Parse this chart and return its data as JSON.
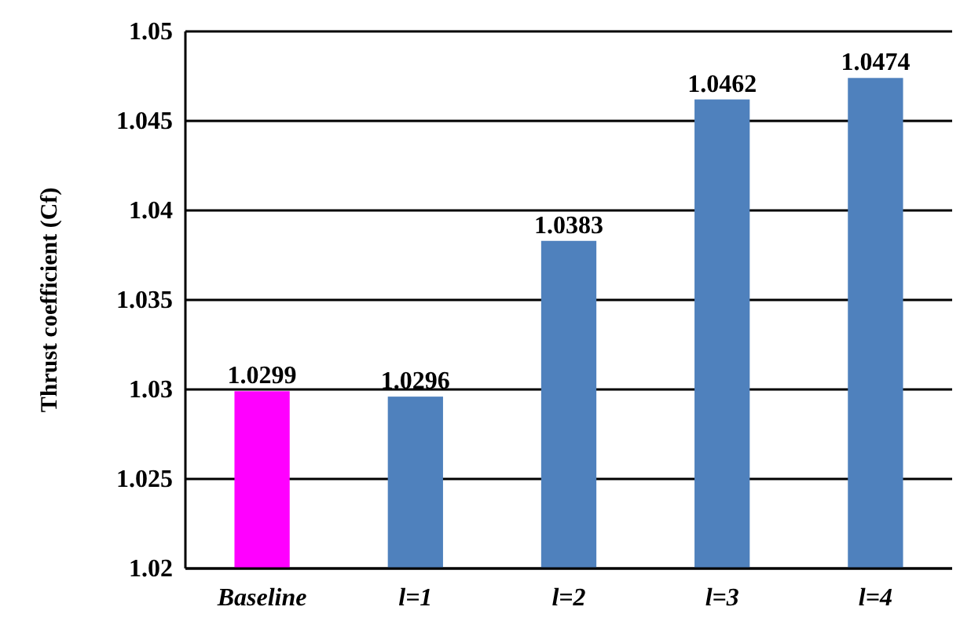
{
  "chart_data": {
    "type": "bar",
    "ylabel": "Thrust coefficient (Cf)",
    "categories": [
      "Baseline",
      "l=1",
      "l=2",
      "l=3",
      "l=4"
    ],
    "values": [
      1.0299,
      1.0296,
      1.0383,
      1.0462,
      1.0474
    ],
    "colors": [
      "#ff00ff",
      "#4f81bd",
      "#4f81bd",
      "#4f81bd",
      "#4f81bd"
    ],
    "ylim": [
      1.02,
      1.05
    ],
    "yticks": [
      1.02,
      1.025,
      1.03,
      1.035,
      1.04,
      1.045,
      1.05
    ],
    "grid": "y",
    "data_labels": true
  }
}
